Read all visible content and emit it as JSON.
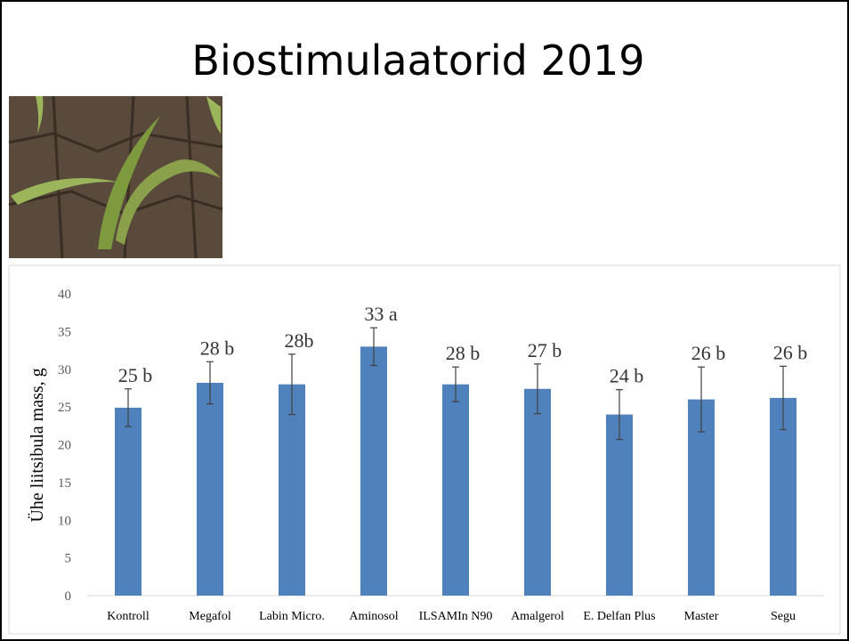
{
  "chart_data": {
    "type": "bar",
    "title": "Biostimulaatorid 2019",
    "y_label": "Ühe liitsibula mass, g",
    "categories": [
      "Kontroll",
      "Megafol",
      "Labin Micro.",
      "Aminosol",
      "ILSAMIn N90",
      "Amalgerol",
      "E. Delfan Plus",
      "Master",
      "Segu"
    ],
    "values": [
      24.9,
      28.2,
      28.0,
      33.0,
      28.0,
      27.4,
      24.0,
      26.0,
      26.2
    ],
    "errors": [
      2.5,
      2.8,
      4.0,
      2.5,
      2.3,
      3.3,
      3.3,
      4.3,
      4.2
    ],
    "value_labels": [
      "25 b",
      "28 b",
      "28b",
      "33 a",
      "28 b",
      "27 b",
      "24 b",
      "26 b",
      "26 b"
    ],
    "color": "#4f81bd",
    "ylim": [
      0,
      40
    ],
    "yticks": [
      0,
      5,
      10,
      15,
      20,
      25,
      30,
      35,
      40
    ],
    "grid": false
  }
}
